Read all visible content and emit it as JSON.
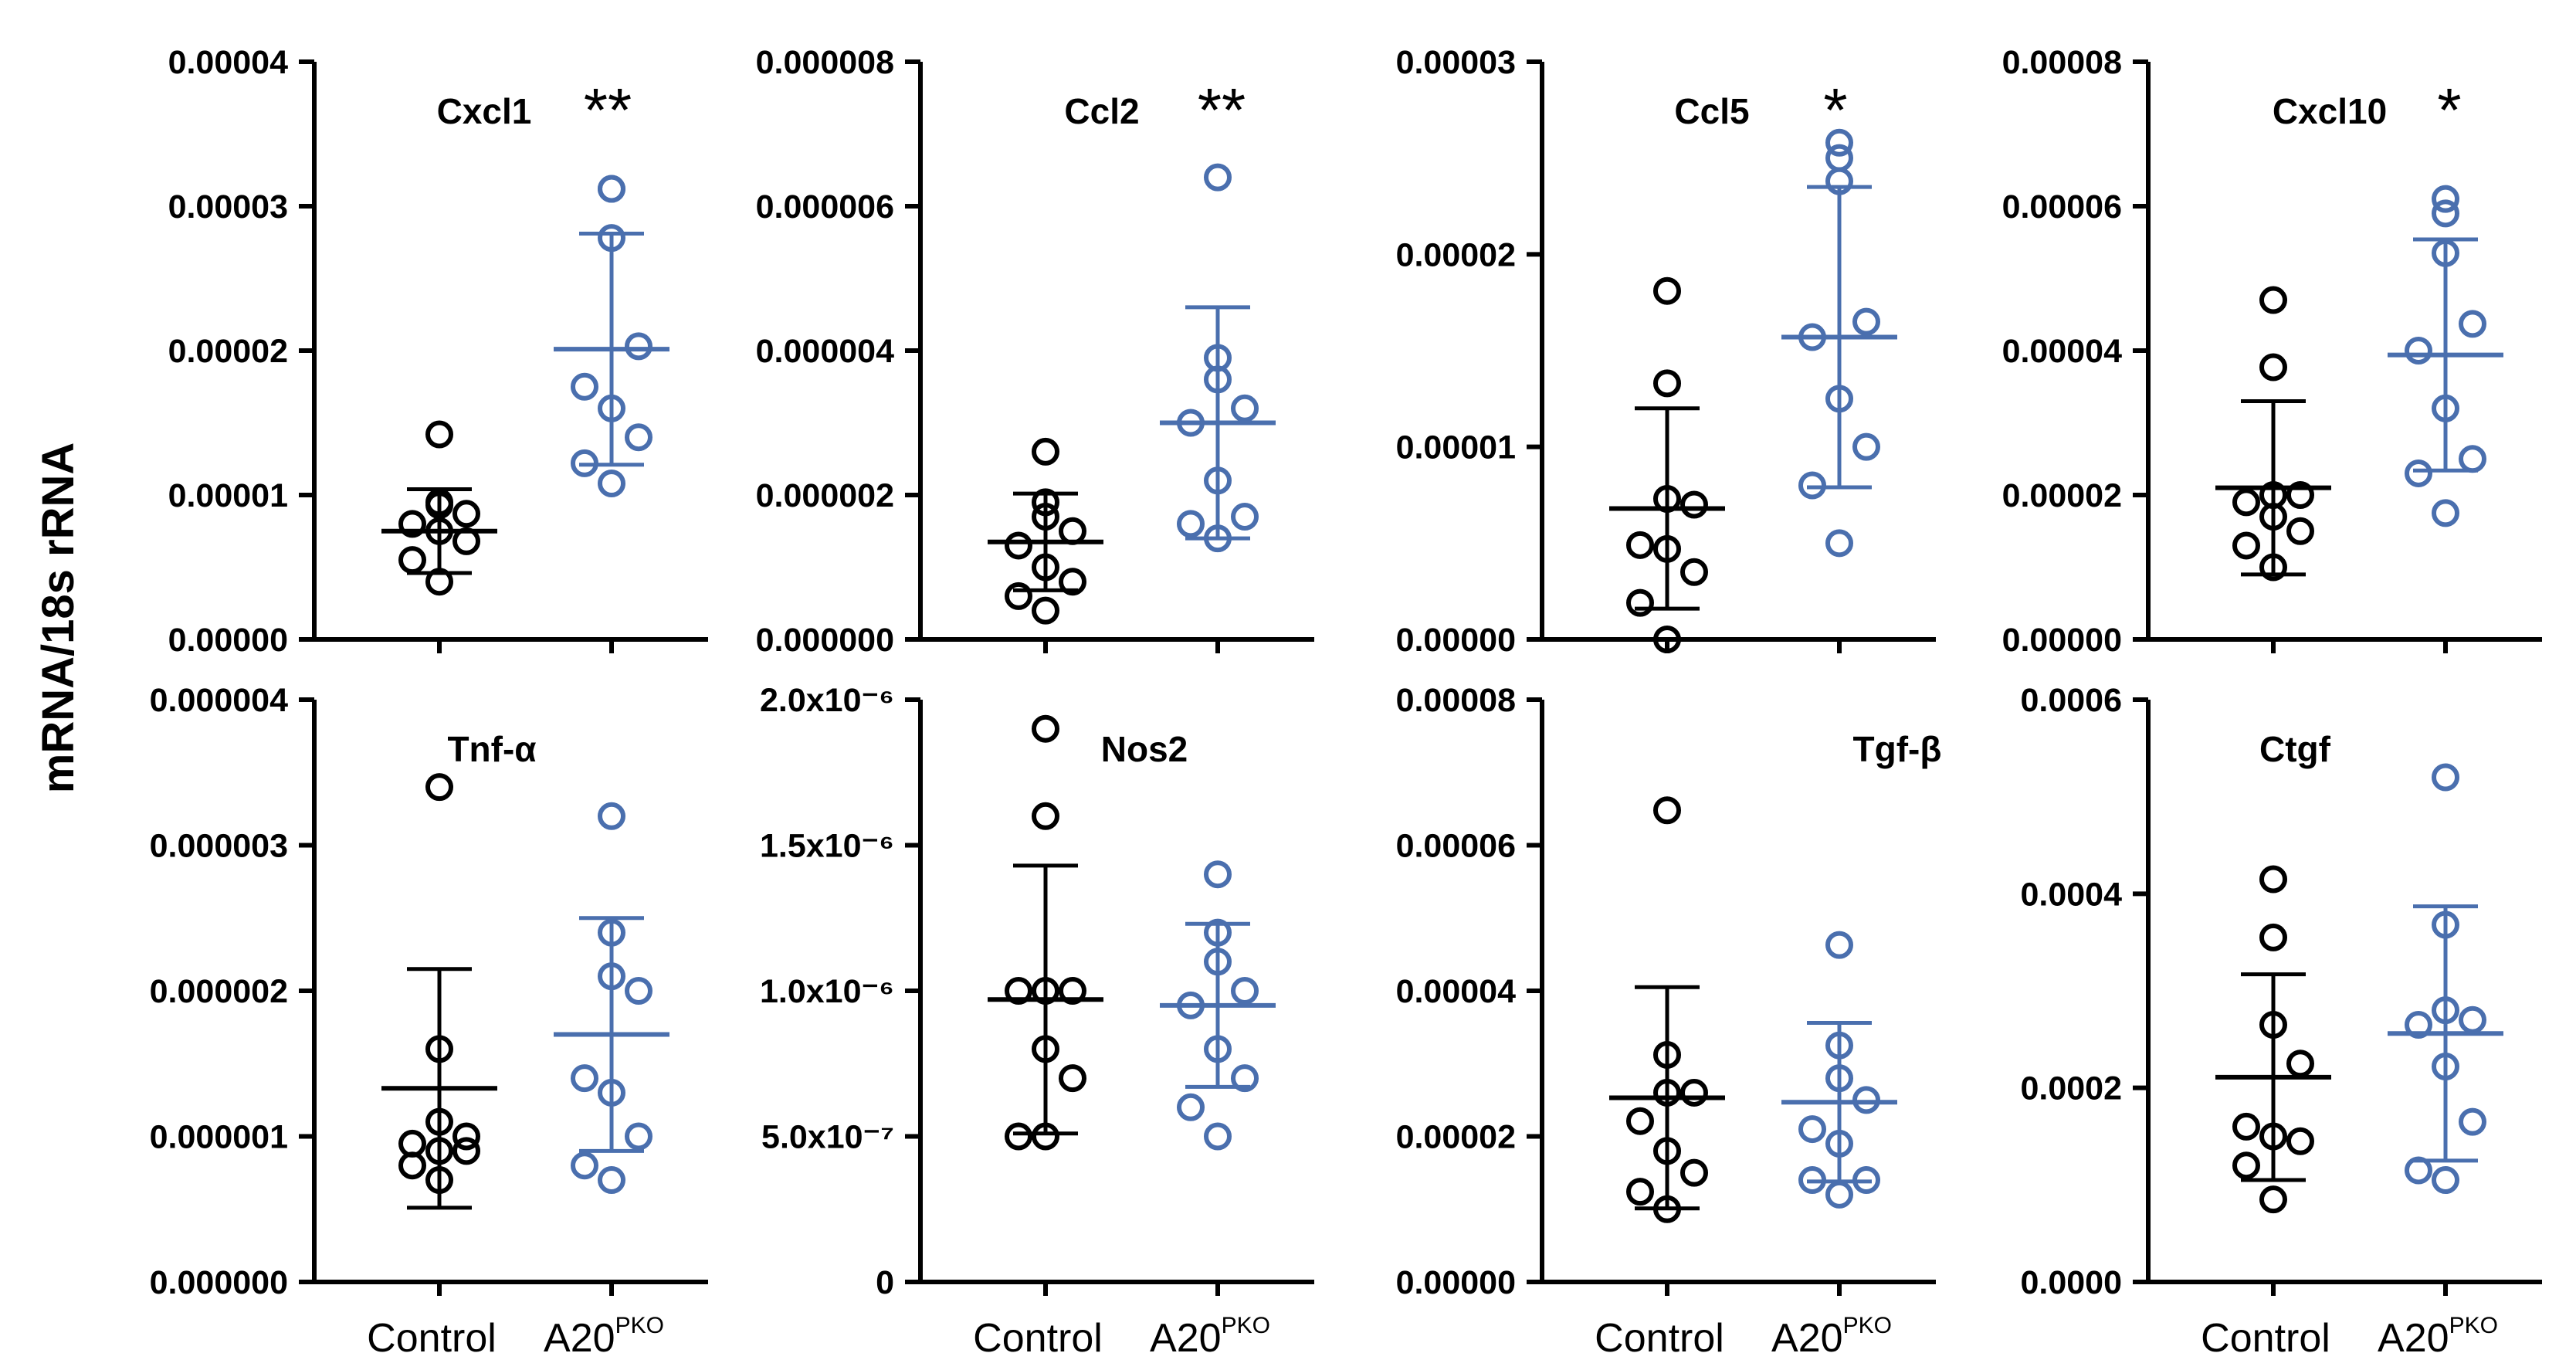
{
  "figure": {
    "ylabel": "mRNA/18s rRNA",
    "category_labels": [
      "Control",
      "A20"
    ],
    "category_superscripts": [
      "",
      "PKO"
    ]
  },
  "colors": {
    "control": "#000000",
    "treated": "#4A6FAE"
  },
  "chart_data": [
    {
      "type": "scatter",
      "title": "Cxcl1",
      "ylim": [
        0,
        4e-05
      ],
      "yticks": [
        "0.00000",
        "0.00001",
        "0.00002",
        "0.00003",
        "0.00004"
      ],
      "significance": "**",
      "series": [
        {
          "name": "Control",
          "values": [
            1.42e-05,
            9.5e-06,
            9.3e-06,
            8.7e-06,
            8e-06,
            7.5e-06,
            6.8e-06,
            5.5e-06,
            4e-06
          ],
          "mean": 7.5e-06,
          "sd": 2.9e-06
        },
        {
          "name": "A20PKO",
          "values": [
            3.12e-05,
            3.12e-05,
            2.78e-05,
            2.03e-05,
            1.75e-05,
            1.6e-05,
            1.4e-05,
            1.22e-05,
            1.08e-05
          ],
          "mean": 2.01e-05,
          "sd": 8e-06
        }
      ]
    },
    {
      "type": "scatter",
      "title": "Ccl2",
      "ylim": [
        0,
        8e-06
      ],
      "yticks": [
        "0.000000",
        "0.000002",
        "0.000004",
        "0.000006",
        "0.000008"
      ],
      "significance": "**",
      "series": [
        {
          "name": "Control",
          "values": [
            2.6e-06,
            1.9e-06,
            1.7e-06,
            1.5e-06,
            1.3e-06,
            1e-06,
            8e-07,
            6e-07,
            4e-07
          ],
          "mean": 1.35e-06,
          "sd": 6.7e-07
        },
        {
          "name": "A20PKO",
          "values": [
            6.4e-06,
            3.9e-06,
            3.6e-06,
            3.2e-06,
            3e-06,
            2.2e-06,
            1.7e-06,
            1.6e-06,
            1.4e-06
          ],
          "mean": 3e-06,
          "sd": 1.6e-06
        }
      ]
    },
    {
      "type": "scatter",
      "title": "Ccl5",
      "ylim": [
        0,
        3e-05
      ],
      "yticks": [
        "0.00000",
        "0.00001",
        "0.00002",
        "0.00003"
      ],
      "significance": "*",
      "series": [
        {
          "name": "Control",
          "values": [
            1.81e-05,
            1.33e-05,
            7.3e-06,
            7e-06,
            4.9e-06,
            4.7e-06,
            3.5e-06,
            1.9e-06,
            0.0
          ],
          "mean": 6.8e-06,
          "sd": 5.2e-06
        },
        {
          "name": "A20PKO",
          "values": [
            2.58e-05,
            2.5e-05,
            2.38e-05,
            1.65e-05,
            1.57e-05,
            1.25e-05,
            1e-05,
            8e-06,
            5e-06
          ],
          "mean": 1.57e-05,
          "sd": 7.8e-06
        }
      ]
    },
    {
      "type": "scatter",
      "title": "Cxcl10",
      "ylim": [
        0,
        8e-05
      ],
      "yticks": [
        "0.00000",
        "0.00002",
        "0.00004",
        "0.00006",
        "0.00008"
      ],
      "significance": "*",
      "series": [
        {
          "name": "Control",
          "values": [
            4.7e-05,
            3.77e-05,
            2e-05,
            2e-05,
            1.9e-05,
            1.7e-05,
            1.5e-05,
            1.3e-05,
            1e-05
          ],
          "mean": 2.1e-05,
          "sd": 1.2e-05
        },
        {
          "name": "A20PKO",
          "values": [
            6.1e-05,
            5.9e-05,
            5.35e-05,
            4.37e-05,
            4e-05,
            3.2e-05,
            2.5e-05,
            2.3e-05,
            1.75e-05
          ],
          "mean": 3.94e-05,
          "sd": 1.6e-05
        }
      ]
    },
    {
      "type": "scatter",
      "title": "Tnf-α",
      "ylim": [
        0,
        4e-06
      ],
      "yticks": [
        "0.000000",
        "0.000001",
        "0.000002",
        "0.000003",
        "0.000004"
      ],
      "significance": "",
      "series": [
        {
          "name": "Control",
          "values": [
            3.4e-06,
            1.6e-06,
            1.1e-06,
            1e-06,
            9.5e-07,
            9e-07,
            9e-07,
            8e-07,
            7e-07
          ],
          "mean": 1.33e-06,
          "sd": 8.2e-07
        },
        {
          "name": "A20PKO",
          "values": [
            3.2e-06,
            2.4e-06,
            2.1e-06,
            2e-06,
            1.4e-06,
            1.3e-06,
            1e-06,
            8e-07,
            7e-07
          ],
          "mean": 1.7e-06,
          "sd": 8e-07
        }
      ]
    },
    {
      "type": "scatter",
      "title": "Nos2",
      "ylim": [
        0,
        2e-06
      ],
      "yticks": [
        "0",
        "5.0x10⁻⁷",
        "1.0x10⁻⁶",
        "1.5x10⁻⁶",
        "2.0x10⁻⁶"
      ],
      "significance": "",
      "series": [
        {
          "name": "Control",
          "values": [
            1.9e-06,
            1.6e-06,
            1e-06,
            1e-06,
            1e-06,
            8e-07,
            7e-07,
            5e-07,
            5e-07
          ],
          "mean": 9.7e-07,
          "sd": 4.6e-07
        },
        {
          "name": "A20PKO",
          "values": [
            1.4e-06,
            1.2e-06,
            1.1e-06,
            1e-06,
            9.5e-07,
            8e-07,
            7e-07,
            6e-07,
            5e-07
          ],
          "mean": 9.5e-07,
          "sd": 2.8e-07
        }
      ]
    },
    {
      "type": "scatter",
      "title": "Tgf-β",
      "ylim": [
        0,
        8e-05
      ],
      "yticks": [
        "0.00000",
        "0.00002",
        "0.00004",
        "0.00006",
        "0.00008"
      ],
      "significance": "",
      "series": [
        {
          "name": "Control",
          "values": [
            6.48e-05,
            3.12e-05,
            2.6e-05,
            2.6e-05,
            2.21e-05,
            1.8e-05,
            1.5e-05,
            1.24e-05,
            1e-05
          ],
          "mean": 2.53e-05,
          "sd": 1.52e-05
        },
        {
          "name": "A20PKO",
          "values": [
            4.63e-05,
            3.25e-05,
            2.8e-05,
            2.5e-05,
            2.1e-05,
            1.9e-05,
            1.4e-05,
            1.4e-05,
            1.2e-05
          ],
          "mean": 2.47e-05,
          "sd": 1.09e-05
        }
      ]
    },
    {
      "type": "scatter",
      "title": "Ctgf",
      "ylim": [
        0,
        0.0006
      ],
      "yticks": [
        "0.0000",
        "0.0002",
        "0.0004",
        "0.0006"
      ],
      "significance": "",
      "series": [
        {
          "name": "Control",
          "values": [
            0.000415,
            0.000355,
            0.000265,
            0.000225,
            0.00016,
            0.00015,
            0.000145,
            0.00012,
            8.5e-05
          ],
          "mean": 0.000211,
          "sd": 0.000106
        },
        {
          "name": "A20PKO",
          "values": [
            0.00052,
            0.000368,
            0.00028,
            0.00027,
            0.000265,
            0.000222,
            0.000165,
            0.000115,
            0.000105
          ],
          "mean": 0.000256,
          "sd": 0.000131
        }
      ]
    }
  ]
}
